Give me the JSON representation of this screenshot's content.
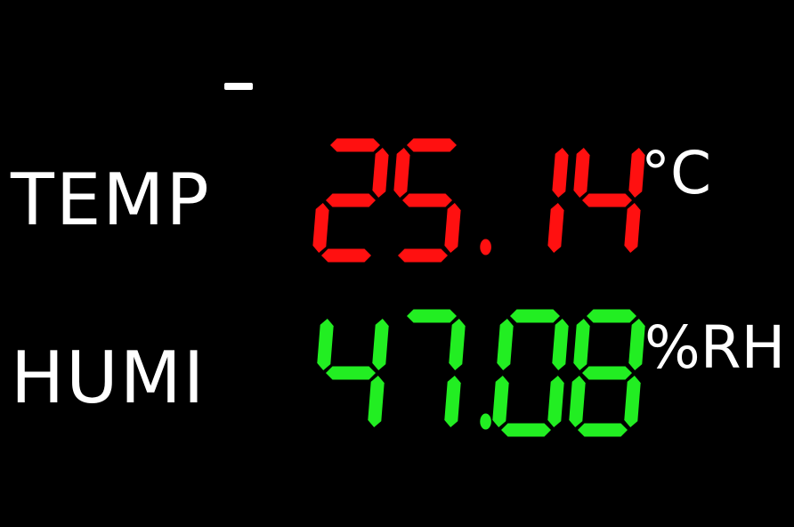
{
  "display": {
    "indicator": "-",
    "temperature": {
      "label": "TEMP",
      "value": "25.14",
      "unit": "°C",
      "color": "#ff1010"
    },
    "humidity": {
      "label": "HUMI",
      "value": "47.08",
      "unit": "%RH",
      "color": "#22ee22"
    },
    "background": "#000000"
  }
}
